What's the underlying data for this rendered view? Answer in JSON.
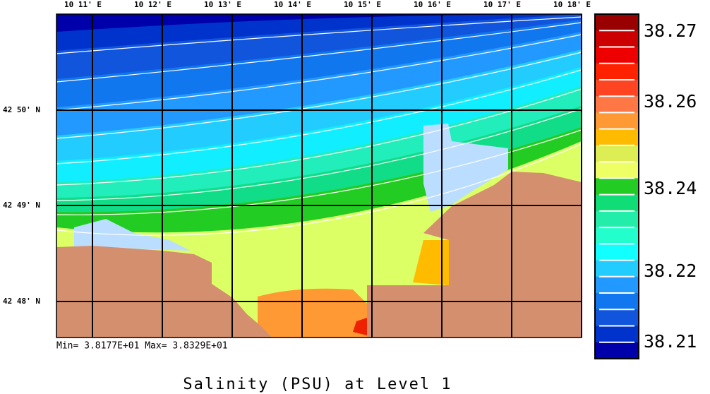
{
  "x_axis_labels": [
    "10 11' E",
    "10 12' E",
    "10 13' E",
    "10 14' E",
    "10 15' E",
    "10 16' E",
    "10 17' E",
    "10 18' E"
  ],
  "y_axis_labels": [
    "42 50' N",
    "42 49' N",
    "42 48' N"
  ],
  "colorbar": {
    "labels": [
      "38.27",
      "38.26",
      "38.24",
      "38.22",
      "38.21"
    ]
  },
  "stats": "Min= 3.8177E+01   Max= 3.8329E+01",
  "title": "Salinity (PSU) at Level 1"
}
